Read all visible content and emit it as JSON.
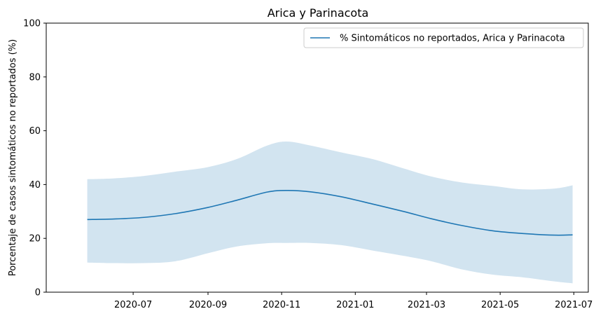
{
  "chart_data": {
    "type": "line",
    "title": "Arica y Parinacota",
    "xlabel": "",
    "ylabel": "Porcentaje de casos sintomáticos no reportados (%)",
    "ylim": [
      0,
      100
    ],
    "yticks": [
      0,
      20,
      40,
      60,
      80,
      100
    ],
    "xlim": [
      "2020-04-20",
      "2021-07-13"
    ],
    "xticks": [
      "2020-07",
      "2020-09",
      "2020-11",
      "2021-01",
      "2021-03",
      "2021-05",
      "2021-07"
    ],
    "grid": false,
    "legend_position": "top-right",
    "series": [
      {
        "name": "% Sintomáticos no reportados, Arica y Parinacota",
        "color": "#1f77b4",
        "band_color": "#1f77b4",
        "band_opacity": 0.2,
        "x": [
          "2020-05-24",
          "2020-06-15",
          "2020-07-10",
          "2020-08-05",
          "2020-09-01",
          "2020-09-25",
          "2020-10-20",
          "2020-11-05",
          "2020-11-25",
          "2020-12-20",
          "2021-01-15",
          "2021-02-10",
          "2021-03-05",
          "2021-03-30",
          "2021-04-25",
          "2021-05-20",
          "2021-06-15",
          "2021-06-30"
        ],
        "values": [
          27,
          27.2,
          27.8,
          29.2,
          31.5,
          34.2,
          37.2,
          37.8,
          37.3,
          35.5,
          32.8,
          30.0,
          27.3,
          24.8,
          22.8,
          21.8,
          21.2,
          21.3
        ],
        "upper": [
          42,
          42.3,
          43.2,
          44.8,
          46.5,
          49.5,
          54.5,
          56.0,
          54.5,
          52.0,
          49.5,
          46.0,
          43.0,
          40.8,
          39.5,
          38.2,
          38.5,
          39.7
        ],
        "lower": [
          11,
          10.8,
          10.8,
          11.5,
          14.5,
          17.0,
          18.2,
          18.3,
          18.3,
          17.5,
          15.5,
          13.5,
          11.5,
          8.5,
          6.5,
          5.5,
          4.0,
          3.3
        ]
      }
    ]
  }
}
